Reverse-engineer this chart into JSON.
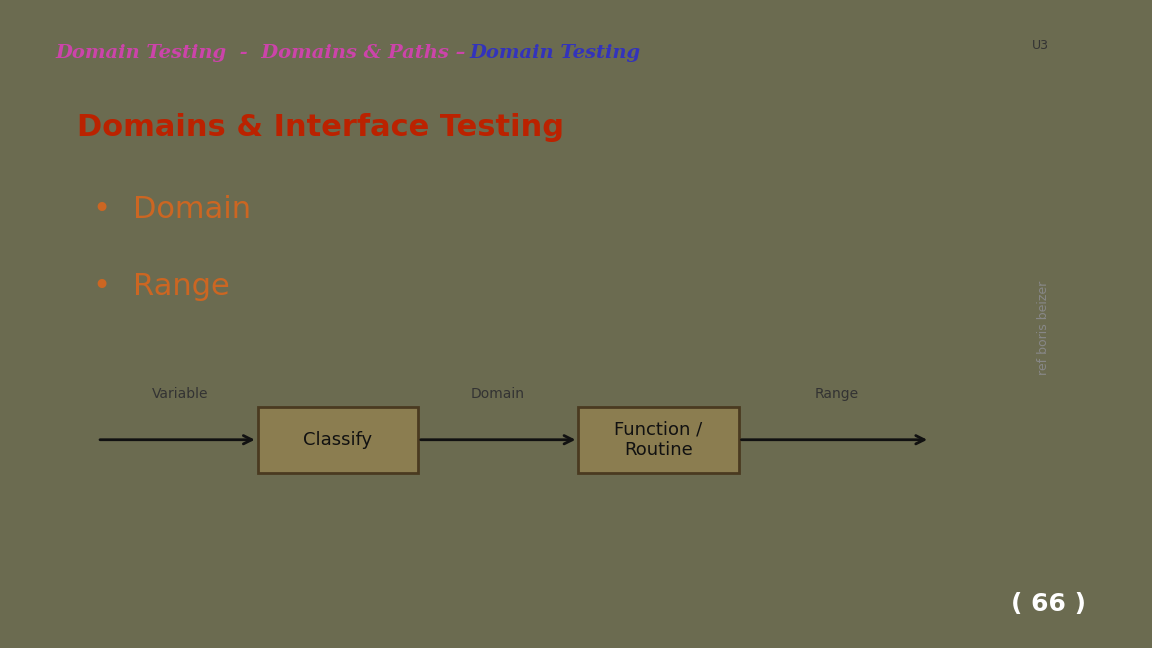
{
  "title_part1": "Domain Testing  -  Domains & Paths – ",
  "title_part2": "Domain Testing",
  "title_bar_bg": "#d4c4c0",
  "title_text_color1": "#cc44aa",
  "title_text_color2": "#3333bb",
  "u3_text": "U3",
  "u3_color": "#333333",
  "slide_bg": "#c5d5cc",
  "outer_bg": "#6b6b50",
  "slide_title": "Domains & Interface Testing",
  "slide_title_color": "#bb2200",
  "bullet1": "Domain",
  "bullet2": "Range",
  "bullet_color": "#cc6622",
  "box_fill": "#8b7d50",
  "box_edge": "#4a3a20",
  "box_text_color": "#111111",
  "box1_label": "Classify",
  "box2_label": "Function /\nRoutine",
  "arrow_color": "#111111",
  "label_variable": "Variable",
  "label_domain": "Domain",
  "label_range": "Range",
  "label_color": "#333333",
  "page_num": "( 66 )",
  "page_num_color": "#ffffff",
  "side_label": "ref boris beizer",
  "side_label_color": "#888888",
  "title_border_color": "#cc7755",
  "slide_border_color": "#cc7755",
  "footer_bg": "#8b8060",
  "footer_light": "#e0ddd0"
}
